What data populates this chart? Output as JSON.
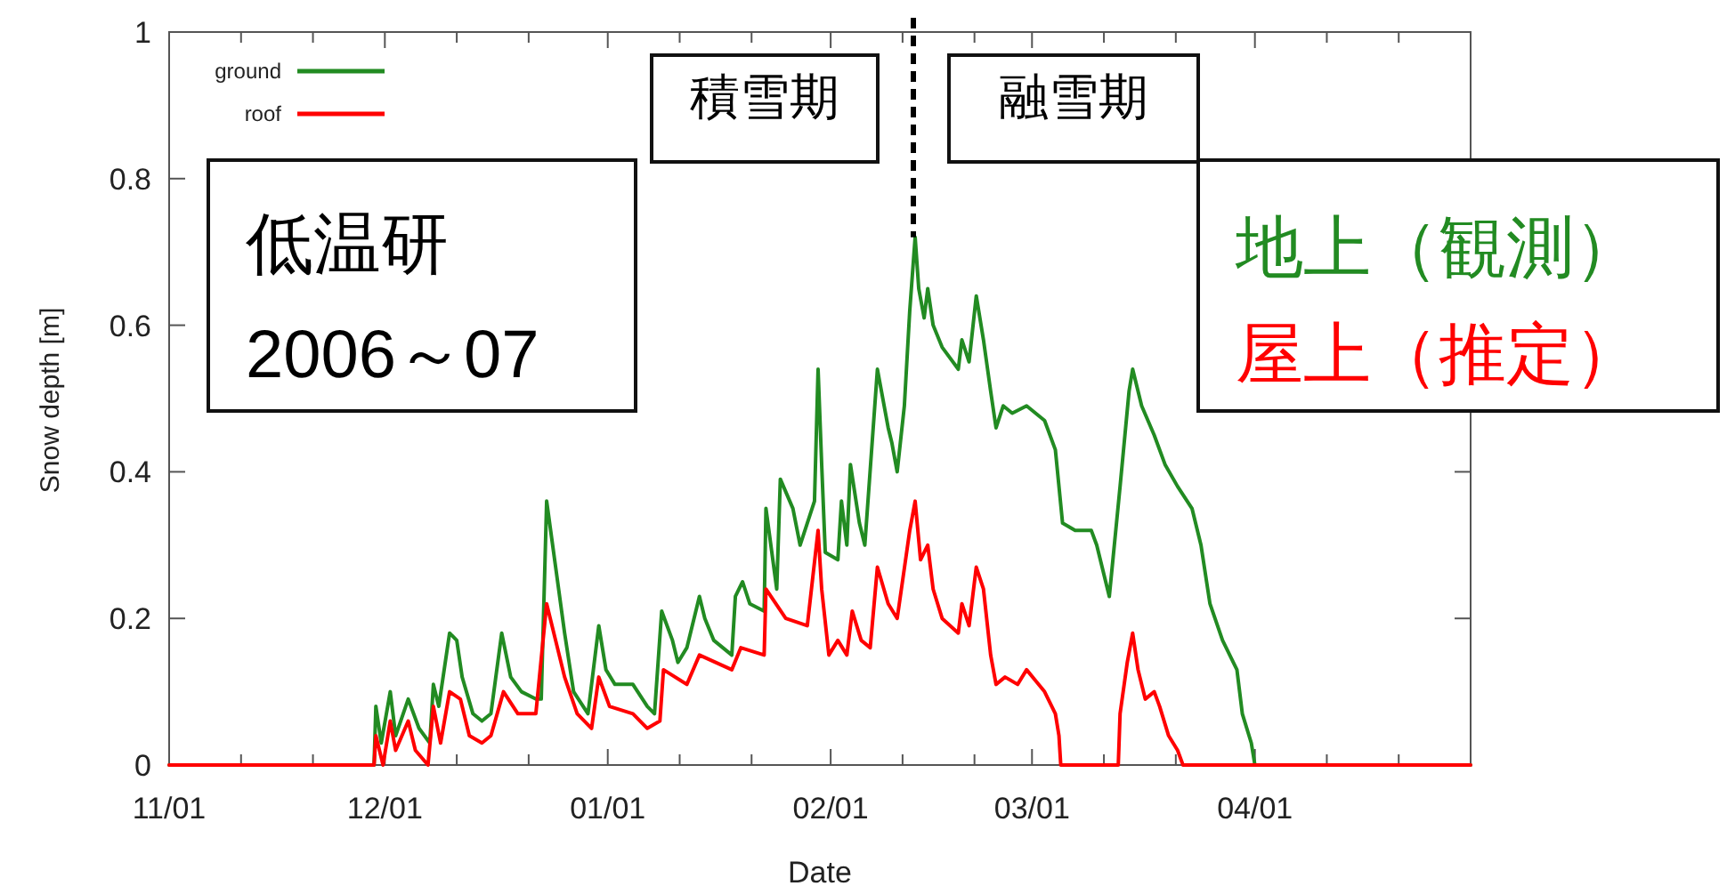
{
  "chart_data": {
    "type": "line",
    "xlabel": "Date",
    "ylabel": "Snow depth [m]",
    "annotations": [
      "積雪期",
      "融雪期",
      "低温研\n2006～07",
      "地上（観測）",
      "屋上（推定）"
    ],
    "xlim": [
      "2006-11-01",
      "2007-05-01"
    ],
    "xticks": [
      {
        "value": "2006-11-01",
        "label": "11/01"
      },
      {
        "value": "2006-11-11",
        "label": null
      },
      {
        "value": "2006-11-21",
        "label": null
      },
      {
        "value": "2006-12-01",
        "label": "12/01"
      },
      {
        "value": "2006-12-11",
        "label": null
      },
      {
        "value": "2006-12-21",
        "label": null
      },
      {
        "value": "2007-01-01",
        "label": "01/01"
      },
      {
        "value": "2007-01-11",
        "label": null
      },
      {
        "value": "2007-01-21",
        "label": null
      },
      {
        "value": "2007-02-01",
        "label": "02/01"
      },
      {
        "value": "2007-02-11",
        "label": null
      },
      {
        "value": "2007-02-21",
        "label": null
      },
      {
        "value": "2007-03-01",
        "label": "03/01"
      },
      {
        "value": "2007-03-11",
        "label": null
      },
      {
        "value": "2007-03-21",
        "label": null
      },
      {
        "value": "2007-04-01",
        "label": "04/01"
      },
      {
        "value": "2007-04-11",
        "label": null
      },
      {
        "value": "2007-04-21",
        "label": null
      }
    ],
    "ylim": [
      0,
      1
    ],
    "yticks": [
      0,
      0.2,
      0.4,
      0.6,
      0.8,
      1
    ],
    "legend": "top left",
    "ref_lines": [
      {
        "axis": "x",
        "value": "2007-02-12T12:00",
        "color": "#000000",
        "line_style": "dashed"
      }
    ],
    "series": [
      {
        "name": "ground",
        "color": "#228b22",
        "x": [
          "2006-11-01",
          "2006-11-29T12:00",
          "2006-11-29T18:00",
          "2006-11-30T12:00",
          "2006-12-01T18:00",
          "2006-12-02T12:00",
          "2006-12-04T06:00",
          "2006-12-05T18:00",
          "2006-12-07T06:00",
          "2006-12-07T18:00",
          "2006-12-08T12:00",
          "2006-12-10T00:00",
          "2006-12-11T00:00",
          "2006-12-11T18:00",
          "2006-12-13T06:00",
          "2006-12-14T12:00",
          "2006-12-15T18:00",
          "2006-12-17T06:00",
          "2006-12-18T12:00",
          "2006-12-20T00:00",
          "2006-12-22T00:00",
          "2006-12-22T18:00",
          "2006-12-23T12:00",
          "2006-12-24T18:00",
          "2006-12-26T00:00",
          "2006-12-27T06:00",
          "2006-12-29T06:00",
          "2006-12-30T18:00",
          "2006-12-31T18:00",
          "2007-01-02T00:00",
          "2007-01-04T12:00",
          "2007-01-06T12:00",
          "2007-01-07T12:00",
          "2007-01-08T12:00",
          "2007-01-10T00:00",
          "2007-01-10T18:00",
          "2007-01-12T00:00",
          "2007-01-13T18:00",
          "2007-01-14T12:00",
          "2007-01-15T18:00",
          "2007-01-18T06:00",
          "2007-01-18T18:00",
          "2007-01-19T18:00",
          "2007-01-20T18:00",
          "2007-01-22T18:00",
          "2007-01-23T00:00",
          "2007-01-24T12:00",
          "2007-01-25T00:00",
          "2007-01-26T18:00",
          "2007-01-27T18:00",
          "2007-01-29T18:00",
          "2007-01-30T06:00",
          "2007-01-30T18:00",
          "2007-01-31T06:00",
          "2007-02-02T00:00",
          "2007-02-02T12:00",
          "2007-02-03T06:00",
          "2007-02-03T18:00",
          "2007-02-05T00:00",
          "2007-02-05T18:00",
          "2007-02-07T12:00",
          "2007-02-09T00:00",
          "2007-02-09T12:00",
          "2007-02-10T06:00",
          "2007-02-11T06:00",
          "2007-02-12T00:00",
          "2007-02-12T18:00",
          "2007-02-13T06:00",
          "2007-02-14T00:00",
          "2007-02-14T12:00",
          "2007-02-15T06:00",
          "2007-02-16T12:00",
          "2007-02-18T18:00",
          "2007-02-19T06:00",
          "2007-02-20T06:00",
          "2007-02-21T06:00",
          "2007-02-22T06:00",
          "2007-02-23T06:00",
          "2007-02-24T00:00",
          "2007-02-25T00:00",
          "2007-02-26T06:00",
          "2007-02-28T06:00",
          "2007-03-02T18:00",
          "2007-03-04T06:00",
          "2007-03-05T06:00",
          "2007-03-07T00:00",
          "2007-03-09T06:00",
          "2007-03-10T00:00",
          "2007-03-11T18:00",
          "2007-03-12T06:00",
          "2007-03-13T06:00",
          "2007-03-14T12:00",
          "2007-03-15T00:00",
          "2007-03-16T06:00",
          "2007-03-18T00:00",
          "2007-03-19T12:00",
          "2007-03-21T06:00",
          "2007-03-23T06:00",
          "2007-03-24T12:00",
          "2007-03-25T18:00",
          "2007-03-27T12:00",
          "2007-03-29T12:00",
          "2007-03-30T06:00",
          "2007-03-31T12:00",
          "2007-04-01T00:00",
          "2007-05-01"
        ],
        "values": [
          0,
          0,
          0.08,
          0.03,
          0.1,
          0.04,
          0.09,
          0.05,
          0.03,
          0.11,
          0.08,
          0.18,
          0.17,
          0.12,
          0.07,
          0.06,
          0.07,
          0.18,
          0.12,
          0.1,
          0.09,
          0.09,
          0.36,
          0.27,
          0.18,
          0.1,
          0.07,
          0.19,
          0.13,
          0.11,
          0.11,
          0.08,
          0.07,
          0.21,
          0.17,
          0.14,
          0.16,
          0.23,
          0.2,
          0.17,
          0.15,
          0.23,
          0.25,
          0.22,
          0.21,
          0.35,
          0.24,
          0.39,
          0.35,
          0.3,
          0.36,
          0.54,
          0.41,
          0.29,
          0.28,
          0.36,
          0.3,
          0.41,
          0.33,
          0.3,
          0.54,
          0.46,
          0.44,
          0.4,
          0.49,
          0.62,
          0.72,
          0.65,
          0.61,
          0.65,
          0.6,
          0.57,
          0.54,
          0.58,
          0.55,
          0.64,
          0.58,
          0.51,
          0.46,
          0.49,
          0.48,
          0.49,
          0.47,
          0.43,
          0.33,
          0.32,
          0.32,
          0.3,
          0.23,
          0.28,
          0.38,
          0.51,
          0.54,
          0.49,
          0.45,
          0.41,
          0.38,
          0.35,
          0.3,
          0.22,
          0.17,
          0.13,
          0.07,
          0.03,
          0,
          0
        ]
      },
      {
        "name": "roof",
        "color": "#ff0000",
        "x": [
          "2006-11-01",
          "2006-11-29T12:00",
          "2006-11-29T18:00",
          "2006-11-30T18:00",
          "2006-12-01T18:00",
          "2006-12-02T12:00",
          "2006-12-04T06:00",
          "2006-12-05T06:00",
          "2006-12-07T00:00",
          "2006-12-07T18:00",
          "2006-12-08T18:00",
          "2006-12-10T00:00",
          "2006-12-11T12:00",
          "2006-12-12T18:00",
          "2006-12-14T12:00",
          "2006-12-15T18:00",
          "2006-12-17T12:00",
          "2006-12-19T12:00",
          "2006-12-22T00:00",
          "2006-12-23T12:00",
          "2006-12-26T00:00",
          "2006-12-27T18:00",
          "2006-12-29T18:00",
          "2006-12-30T18:00",
          "2007-01-01T06:00",
          "2007-01-04T12:00",
          "2007-01-06T12:00",
          "2007-01-08T06:00",
          "2007-01-08T18:00",
          "2007-01-12T00:00",
          "2007-01-13T18:00",
          "2007-01-18T06:00",
          "2007-01-19T12:00",
          "2007-01-22T18:00",
          "2007-01-23T00:00",
          "2007-01-25T18:00",
          "2007-01-28T18:00",
          "2007-01-30T06:00",
          "2007-01-30T18:00",
          "2007-01-31T18:00",
          "2007-02-02T00:00",
          "2007-02-03T06:00",
          "2007-02-04T00:00",
          "2007-02-05T06:00",
          "2007-02-06T12:00",
          "2007-02-07T12:00",
          "2007-02-09T00:00",
          "2007-02-10T06:00",
          "2007-02-12T00:00",
          "2007-02-12T18:00",
          "2007-02-13T12:00",
          "2007-02-14T12:00",
          "2007-02-15T06:00",
          "2007-02-16T12:00",
          "2007-02-18T18:00",
          "2007-02-19T06:00",
          "2007-02-20T06:00",
          "2007-02-21T06:00",
          "2007-02-22T06:00",
          "2007-02-23T06:00",
          "2007-02-24T00:00",
          "2007-02-25T06:00",
          "2007-02-27T00:00",
          "2007-02-28T06:00",
          "2007-03-02T18:00",
          "2007-03-04T06:00",
          "2007-03-04T18:00",
          "2007-03-05T00:00",
          "2007-03-13T00:00",
          "2007-03-13T06:00",
          "2007-03-14T06:00",
          "2007-03-15T00:00",
          "2007-03-15T18:00",
          "2007-03-16T18:00",
          "2007-03-18T00:00",
          "2007-03-18T18:00",
          "2007-03-20T00:00",
          "2007-03-21T06:00",
          "2007-03-22T00:00",
          "2007-05-01"
        ],
        "values": [
          0,
          0,
          0.04,
          0,
          0.06,
          0.02,
          0.06,
          0.02,
          0,
          0.08,
          0.03,
          0.1,
          0.09,
          0.04,
          0.03,
          0.04,
          0.1,
          0.07,
          0.07,
          0.22,
          0.12,
          0.07,
          0.05,
          0.12,
          0.08,
          0.07,
          0.05,
          0.06,
          0.13,
          0.11,
          0.15,
          0.13,
          0.16,
          0.15,
          0.24,
          0.2,
          0.19,
          0.32,
          0.24,
          0.15,
          0.17,
          0.15,
          0.21,
          0.17,
          0.16,
          0.27,
          0.22,
          0.2,
          0.32,
          0.36,
          0.28,
          0.3,
          0.24,
          0.2,
          0.18,
          0.22,
          0.19,
          0.27,
          0.24,
          0.15,
          0.11,
          0.12,
          0.11,
          0.13,
          0.1,
          0.07,
          0.04,
          0,
          0,
          0.07,
          0.14,
          0.18,
          0.13,
          0.09,
          0.1,
          0.08,
          0.04,
          0.02,
          0,
          0
        ]
      }
    ]
  }
}
